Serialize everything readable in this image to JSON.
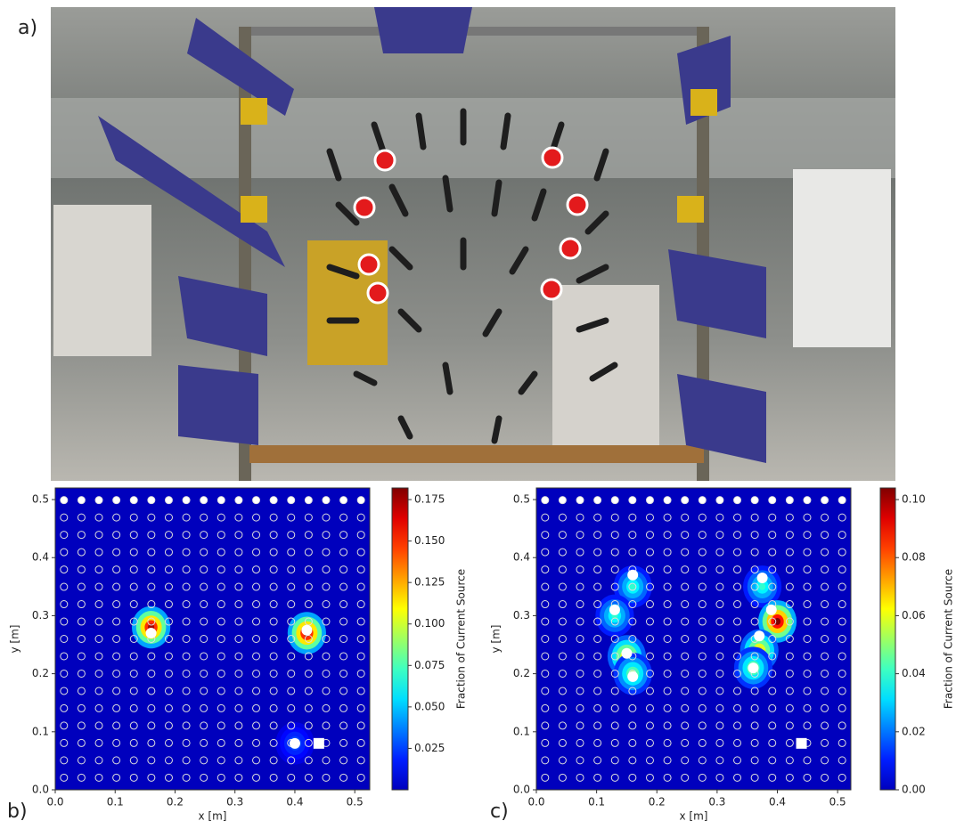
{
  "panel_labels": [
    "a)",
    "b)",
    "c)"
  ],
  "chart_data": [
    {
      "type": "heatmap",
      "xlabel": "x [m]",
      "ylabel": "y [m]",
      "colorbar_label": "Fraction of Current Source",
      "xlim": [
        0,
        0.525
      ],
      "ylim": [
        0,
        0.52
      ],
      "xticks": [
        {
          "value": 0,
          "label": "0.0"
        },
        0.1,
        0.2,
        0.3,
        0.4,
        0.5
      ],
      "yticks": [
        {
          "value": 0,
          "label": "0.0"
        },
        0.1,
        0.2,
        0.3,
        0.4,
        0.5
      ],
      "clim": [
        0,
        0.182
      ],
      "cticks": [
        0.025,
        {
          "value": 0.05,
          "label": "0.050"
        },
        0.075,
        {
          "value": 0.1,
          "label": "0.100"
        },
        0.125,
        {
          "value": 0.15,
          "label": "0.150"
        },
        0.175
      ],
      "hotspots": {
        "x": [
          0.16,
          0.42,
          0.4
        ],
        "y": [
          0.28,
          0.27,
          0.08
        ],
        "values": [
          0.175,
          0.175,
          0.03
        ]
      },
      "electrodes": {
        "x": [
          0.16,
          0.42,
          0.4
        ],
        "y": [
          0.27,
          0.275,
          0.08
        ]
      },
      "source": {
        "x": 0.44,
        "y": 0.08
      }
    },
    {
      "type": "heatmap",
      "xlabel": "x [m]",
      "ylabel": "y [m]",
      "colorbar_label": "Fraction of Current Source",
      "xlim": [
        0,
        0.522
      ],
      "ylim": [
        0,
        0.52
      ],
      "xticks": [
        {
          "value": 0,
          "label": "0.0"
        },
        0.1,
        0.2,
        0.3,
        0.4,
        0.5
      ],
      "yticks": [
        {
          "value": 0,
          "label": "0.0"
        },
        0.1,
        0.2,
        0.3,
        0.4,
        0.5
      ],
      "clim": [
        0,
        0.104
      ],
      "cticks": [
        {
          "value": 0,
          "label": "0.00"
        },
        0.02,
        0.04,
        0.06,
        0.08,
        {
          "value": 0.1,
          "label": "0.10"
        }
      ],
      "hotspots": {
        "x": [
          0.16,
          0.13,
          0.15,
          0.16,
          0.375,
          0.4,
          0.37,
          0.36
        ],
        "y": [
          0.35,
          0.3,
          0.23,
          0.2,
          0.35,
          0.29,
          0.24,
          0.21
        ],
        "values": [
          0.04,
          0.04,
          0.07,
          0.05,
          0.04,
          0.104,
          0.07,
          0.05
        ]
      },
      "electrodes": {
        "x": [
          0.16,
          0.13,
          0.15,
          0.16,
          0.375,
          0.39,
          0.37,
          0.36
        ],
        "y": [
          0.37,
          0.31,
          0.235,
          0.195,
          0.365,
          0.31,
          0.265,
          0.21
        ]
      },
      "source": {
        "x": 0.44,
        "y": 0.08
      }
    }
  ]
}
